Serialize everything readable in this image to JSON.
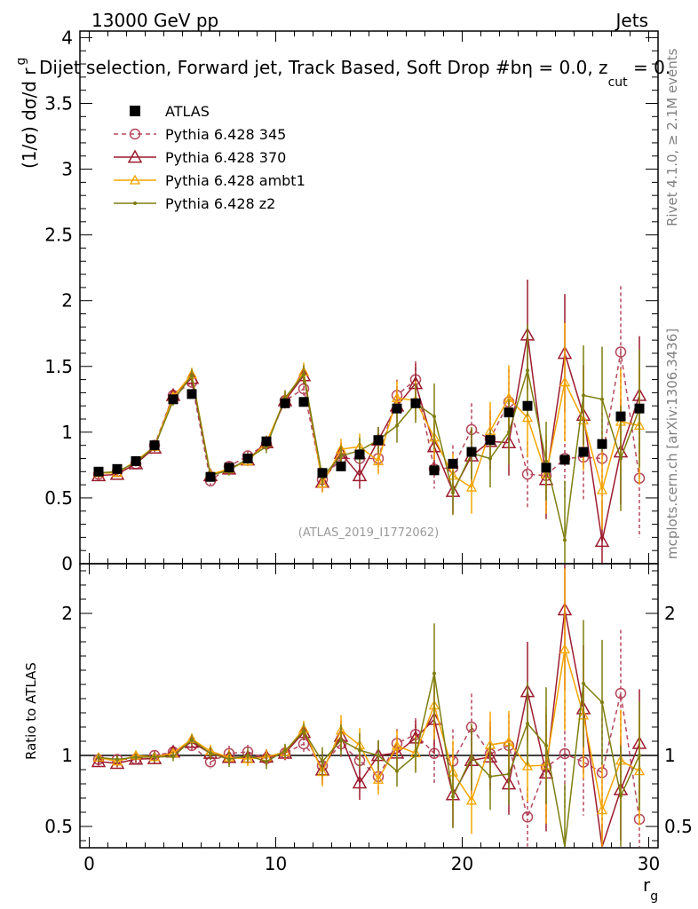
{
  "header": {
    "energy_label": "13000 GeV pp",
    "process_label": "Jets",
    "title": "Dijet selection, Forward jet, Track Based, Soft Drop #b",
    "title_tail": "η = 0.0, z",
    "title_sub": "cut",
    "title_end": " = 0.",
    "rivet_label": "Rivet 4.1.0, ≥ 2.1M events",
    "mcplots_label": "mcplots.cern.ch [arXiv:1306.3436]",
    "analysis_label": "(ATLAS_2019_I1772062)"
  },
  "chart_data": {
    "type": "line",
    "xlabel": "r",
    "xlabel_sub": "g",
    "ylabel_main": "(1/σ) dσ/d r",
    "ylabel_main_sub": "g",
    "ylabel_ratio": "Ratio to ATLAS",
    "xlim": [
      -0.5,
      30.5
    ],
    "ylim_main": [
      0,
      4.05
    ],
    "ylim_ratio": [
      0.35,
      2.35
    ],
    "x_ticks": [
      0,
      10,
      20,
      30
    ],
    "y_ticks_main": [
      0,
      0.5,
      1,
      1.5,
      2,
      2.5,
      3,
      3.5,
      4
    ],
    "y_ticks_main_labels": [
      "0",
      "0.5",
      "1",
      "1.5",
      "2",
      "2.5",
      "3",
      "3.5",
      "4"
    ],
    "y_ticks_ratio": [
      0.5,
      1,
      2
    ],
    "y_ticks_ratio_labels": [
      "0.5",
      "1",
      "2"
    ],
    "x": [
      0.5,
      1.5,
      2.5,
      3.5,
      4.5,
      5.5,
      6.5,
      7.5,
      8.5,
      9.5,
      10.5,
      11.5,
      12.5,
      13.5,
      14.5,
      15.5,
      16.5,
      17.5,
      18.5,
      19.5,
      20.5,
      21.5,
      22.5,
      23.5,
      24.5,
      25.5,
      26.5,
      27.5,
      28.5,
      29.5
    ],
    "data": {
      "name": "ATLAS",
      "values": [
        0.7,
        0.72,
        0.78,
        0.9,
        1.25,
        1.29,
        0.66,
        0.73,
        0.8,
        0.93,
        1.22,
        1.23,
        0.69,
        0.74,
        0.83,
        0.94,
        1.18,
        1.22,
        0.71,
        0.76,
        0.85,
        0.94,
        1.15,
        1.2,
        0.73,
        0.79,
        0.85,
        0.91,
        1.12,
        1.18
      ]
    },
    "series": [
      {
        "name": "Pythia 6.428 345",
        "color": "#b5485d",
        "marker": "circle",
        "dashed": true,
        "values": [
          0.68,
          0.7,
          0.76,
          0.9,
          1.28,
          1.38,
          0.63,
          0.74,
          0.82,
          0.91,
          1.24,
          1.33,
          0.64,
          0.8,
          0.8,
          0.8,
          1.28,
          1.4,
          0.72,
          0.73,
          1.02,
          0.95,
          1.23,
          0.68,
          0.67,
          0.8,
          0.81,
          0.8,
          1.61,
          0.65
        ],
        "errors": [
          0.02,
          0.02,
          0.02,
          0.03,
          0.04,
          0.04,
          0.03,
          0.04,
          0.04,
          0.05,
          0.06,
          0.07,
          0.07,
          0.08,
          0.09,
          0.1,
          0.12,
          0.14,
          0.15,
          0.17,
          0.2,
          0.22,
          0.25,
          0.25,
          0.27,
          0.3,
          0.32,
          0.35,
          0.5,
          0.45
        ]
      },
      {
        "name": "Pythia 6.428 370",
        "color": "#9c1b2e",
        "marker": "triangle-open",
        "dashed": false,
        "values": [
          0.67,
          0.68,
          0.76,
          0.88,
          1.28,
          1.41,
          0.67,
          0.72,
          0.79,
          0.92,
          1.24,
          1.43,
          0.62,
          0.84,
          0.67,
          0.94,
          1.2,
          1.37,
          0.89,
          0.55,
          0.82,
          0.93,
          0.92,
          1.74,
          0.64,
          1.6,
          1.13,
          0.17,
          0.85,
          1.28
        ],
        "errors": [
          0.02,
          0.02,
          0.02,
          0.03,
          0.04,
          0.05,
          0.03,
          0.04,
          0.04,
          0.05,
          0.06,
          0.07,
          0.07,
          0.08,
          0.1,
          0.1,
          0.13,
          0.15,
          0.17,
          0.17,
          0.2,
          0.22,
          0.25,
          0.42,
          0.3,
          0.45,
          0.38,
          0.3,
          0.4,
          0.45
        ]
      },
      {
        "name": "Pythia 6.428 ambt1",
        "color": "#f5a500",
        "marker": "triangle-small",
        "dashed": false,
        "values": [
          0.69,
          0.69,
          0.78,
          0.89,
          1.27,
          1.44,
          0.68,
          0.72,
          0.78,
          0.92,
          1.25,
          1.46,
          0.61,
          0.87,
          0.89,
          0.78,
          1.26,
          1.24,
          0.96,
          0.67,
          0.58,
          1.01,
          1.26,
          1.11,
          0.68,
          1.38,
          1.09,
          0.56,
          1.08,
          1.05
        ],
        "errors": [
          0.02,
          0.02,
          0.02,
          0.03,
          0.04,
          0.05,
          0.03,
          0.04,
          0.04,
          0.05,
          0.06,
          0.07,
          0.07,
          0.08,
          0.1,
          0.1,
          0.13,
          0.15,
          0.17,
          0.17,
          0.2,
          0.22,
          0.25,
          0.3,
          0.3,
          0.45,
          0.38,
          0.3,
          0.4,
          0.45
        ]
      },
      {
        "name": "Pythia 6.428 z2",
        "color": "#7e7e10",
        "marker": "dot",
        "dashed": false,
        "values": [
          0.69,
          0.7,
          0.77,
          0.89,
          1.24,
          1.43,
          0.67,
          0.71,
          0.8,
          0.89,
          1.26,
          1.44,
          0.66,
          0.82,
          0.86,
          0.94,
          1.05,
          1.22,
          1.12,
          0.54,
          0.84,
          0.8,
          1.0,
          1.47,
          0.78,
          0.18,
          1.28,
          1.25,
          0.8,
          1.18
        ],
        "errors": [
          0.02,
          0.02,
          0.02,
          0.03,
          0.04,
          0.05,
          0.03,
          0.04,
          0.04,
          0.05,
          0.06,
          0.07,
          0.07,
          0.08,
          0.1,
          0.1,
          0.13,
          0.15,
          0.25,
          0.17,
          0.2,
          0.22,
          0.25,
          0.35,
          0.3,
          0.45,
          0.38,
          0.4,
          0.4,
          0.45
        ]
      }
    ]
  }
}
